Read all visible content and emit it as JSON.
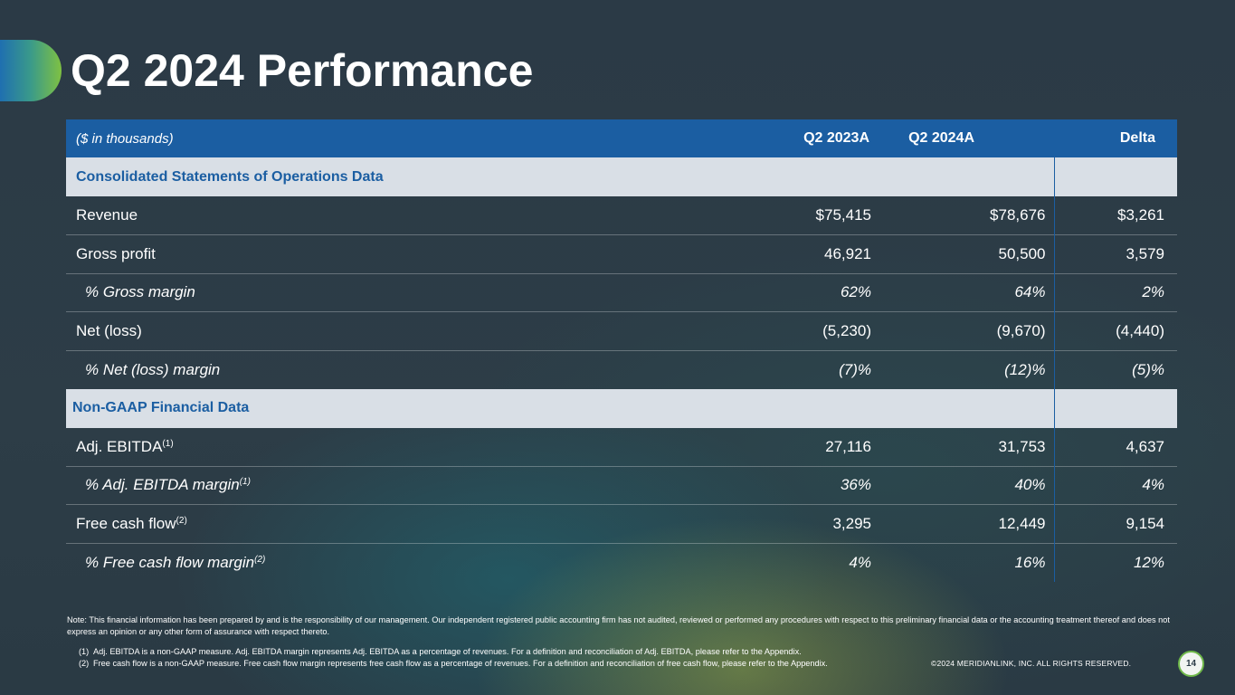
{
  "title": "Q2 2024 Performance",
  "colors": {
    "header_blue": "#1b5ea2",
    "section_gray": "#d9dfe6",
    "accent_green": "#7fc142"
  },
  "table": {
    "header": {
      "label": "($ in thousands)",
      "col1": "Q2 2023A",
      "col2": "Q2 2024A",
      "col3": "Delta"
    },
    "section1": "Consolidated Statements of Operations Data",
    "section2": "Non-GAAP Financial Data",
    "rows": [
      {
        "label": "Revenue",
        "sup": "",
        "q2_2023": "$75,415",
        "q2_2024": "$78,676",
        "delta": "$3,261"
      },
      {
        "label": "Gross profit",
        "sup": "",
        "q2_2023": "46,921",
        "q2_2024": "50,500",
        "delta": "3,579"
      },
      {
        "label": "% Gross margin",
        "sup": "",
        "q2_2023": "62%",
        "q2_2024": "64%",
        "delta": "2%"
      },
      {
        "label": "Net (loss)",
        "sup": "",
        "q2_2023": "(5,230)",
        "q2_2024": "(9,670)",
        "delta": "(4,440)"
      },
      {
        "label": "% Net (loss) margin",
        "sup": "",
        "q2_2023": "(7)%",
        "q2_2024": "(12)%",
        "delta": "(5)%"
      },
      {
        "label": "Adj. EBITDA",
        "sup": "(1)",
        "q2_2023": "27,116",
        "q2_2024": "31,753",
        "delta": "4,637"
      },
      {
        "label": "% Adj. EBITDA margin",
        "sup": "(1)",
        "q2_2023": "36%",
        "q2_2024": "40%",
        "delta": "4%"
      },
      {
        "label": "Free cash flow",
        "sup": "(2)",
        "q2_2023": "3,295",
        "q2_2024": "12,449",
        "delta": "9,154"
      },
      {
        "label": "% Free cash flow margin",
        "sup": "(2)",
        "q2_2023": "4%",
        "q2_2024": "16%",
        "delta": "12%"
      }
    ]
  },
  "note": "Note: This financial information has been prepared by and is the responsibility of our management. Our independent registered public accounting firm has not audited, reviewed or performed any procedures with respect to this preliminary financial data or the accounting treatment thereof and does not express an opinion or any other form of assurance with respect thereto.",
  "footnotes": [
    {
      "marker": "(1)",
      "text": "Adj. EBITDA is a non-GAAP measure. Adj. EBITDA margin represents Adj. EBITDA as a percentage of revenues. For a definition and reconciliation of Adj. EBITDA, please refer to the Appendix."
    },
    {
      "marker": "(2)",
      "text": "Free cash flow is a non-GAAP measure. Free cash flow margin represents free cash flow as a percentage of revenues. For a definition and reconciliation of free cash flow, please refer to the Appendix."
    }
  ],
  "copyright": "©2024 MERIDIANLINK, INC. ALL RIGHTS RESERVED.",
  "page_number": "14"
}
